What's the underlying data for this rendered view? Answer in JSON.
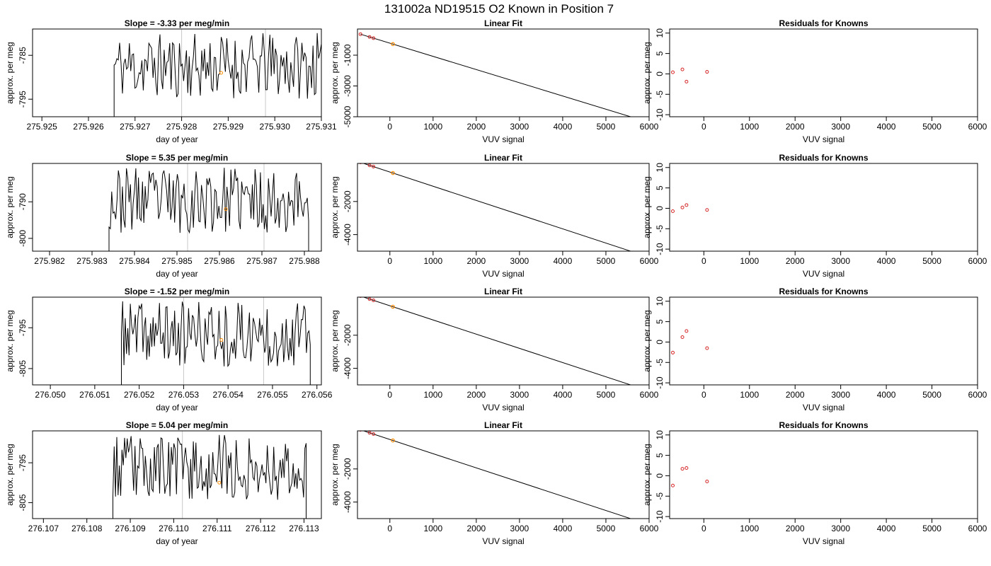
{
  "title": "131002a     ND19515   O2 Known in Position  7",
  "colors": {
    "trace": "#000000",
    "known_point": "#d62728",
    "sample_point": "#ff8c00",
    "marker_line": "#c8c8c8",
    "fit_line": "#000000"
  },
  "chart_data": [
    {
      "row": 1,
      "panels": [
        {
          "type": "line",
          "title": "Slope =  -3.33  per meg/min",
          "xlabel": "day of year",
          "ylabel": "approx. per meg",
          "xlim": [
            275.9248,
            275.931
          ],
          "ylim": [
            -799,
            -779
          ],
          "xticks": [
            275.925,
            275.926,
            275.927,
            275.928,
            275.929,
            275.93,
            275.931
          ],
          "xtick_labels": [
            "275.925",
            "275.926",
            "275.927",
            "275.928",
            "275.929",
            "275.930",
            "275.931"
          ],
          "yticks": [
            -785,
            -795
          ],
          "ytick_labels": [
            "-785",
            "-795"
          ],
          "x_start": 275.92655,
          "x_end": 275.931,
          "n_points": 150,
          "seed": 11,
          "vlines": [
            275.928,
            275.9298
          ],
          "marker": {
            "x": 275.92885,
            "y": -789
          }
        },
        {
          "type": "scatter+line",
          "title": "Linear Fit",
          "xlabel": "VUV signal",
          "ylabel": "approx. per meg",
          "xlim": [
            -750,
            6000
          ],
          "ylim": [
            -5000,
            700
          ],
          "xticks": [
            0,
            1000,
            2000,
            3000,
            4000,
            5000,
            6000
          ],
          "yticks": [
            -1000,
            -3000,
            -5000
          ],
          "ytick_labels": [
            "-1000",
            "-3000",
            "-5000"
          ],
          "known_x": [
            -680,
            -470,
            -380
          ],
          "sample_x": 70,
          "fit": {
            "slope": -0.858,
            "intercept": -220,
            "x_from": -680,
            "x_to": 5780
          }
        },
        {
          "type": "scatter",
          "title": "Residuals for Knowns",
          "xlabel": "VUV signal",
          "ylabel": "approx. per meg",
          "xlim": [
            -750,
            6000
          ],
          "ylim": [
            -10.5,
            11
          ],
          "xticks": [
            0,
            1000,
            2000,
            3000,
            4000,
            5000,
            6000
          ],
          "yticks": [
            -10,
            -5,
            0,
            5,
            10
          ],
          "points": [
            [
              -680,
              0.4
            ],
            [
              -470,
              1.1
            ],
            [
              -380,
              -1.9
            ],
            [
              70,
              0.5
            ]
          ]
        }
      ]
    },
    {
      "row": 2,
      "panels": [
        {
          "type": "line",
          "title": "Slope =  5.35  per meg/min",
          "xlabel": "day of year",
          "ylabel": "approx. per meg",
          "xlim": [
            275.9816,
            275.9884
          ],
          "ylim": [
            -803.5,
            -779.5
          ],
          "xticks": [
            275.982,
            275.983,
            275.984,
            275.985,
            275.986,
            275.987,
            275.988
          ],
          "xtick_labels": [
            "275.982",
            "275.983",
            "275.984",
            "275.985",
            "275.986",
            "275.987",
            "275.988"
          ],
          "yticks": [
            -790,
            -800
          ],
          "ytick_labels": [
            "-790",
            "-800"
          ],
          "x_start": 275.9834,
          "x_end": 275.9881,
          "n_points": 150,
          "seed": 23,
          "vlines": [
            275.98525,
            275.98705
          ],
          "marker": {
            "x": 275.98615,
            "y": -792
          }
        },
        {
          "type": "scatter+line",
          "title": "Linear Fit",
          "xlabel": "VUV signal",
          "ylabel": "approx. per meg",
          "xlim": [
            -750,
            6000
          ],
          "ylim": [
            -5000,
            300
          ],
          "xticks": [
            0,
            1000,
            2000,
            3000,
            4000,
            5000,
            6000
          ],
          "yticks": [
            -2000,
            -4000
          ],
          "ytick_labels": [
            "-2000",
            "-4000"
          ],
          "known_x": [
            -680,
            -470,
            -380
          ],
          "sample_x": 70,
          "fit": {
            "slope": -0.858,
            "intercept": -220,
            "x_from": -680,
            "x_to": 5780
          }
        },
        {
          "type": "scatter",
          "title": "Residuals for Knowns",
          "xlabel": "VUV signal",
          "ylabel": "approx. per meg",
          "xlim": [
            -750,
            6000
          ],
          "ylim": [
            -10.5,
            11
          ],
          "xticks": [
            0,
            1000,
            2000,
            3000,
            4000,
            5000,
            6000
          ],
          "yticks": [
            -10,
            -5,
            0,
            5,
            10
          ],
          "points": [
            [
              -680,
              -0.7
            ],
            [
              -470,
              0.2
            ],
            [
              -380,
              0.8
            ],
            [
              70,
              -0.4
            ]
          ]
        }
      ]
    },
    {
      "row": 3,
      "panels": [
        {
          "type": "line",
          "title": "Slope =  -1.52  per meg/min",
          "xlabel": "day of year",
          "ylabel": "approx. per meg",
          "xlim": [
            276.0496,
            276.0561
          ],
          "ylim": [
            -809,
            -787.5
          ],
          "xticks": [
            276.05,
            276.051,
            276.052,
            276.053,
            276.054,
            276.055,
            276.056
          ],
          "xtick_labels": [
            "276.050",
            "276.051",
            "276.052",
            "276.053",
            "276.054",
            "276.055",
            "276.056"
          ],
          "yticks": [
            -795,
            -805
          ],
          "ytick_labels": [
            "-795",
            "-805"
          ],
          "x_start": 276.0516,
          "x_end": 276.05585,
          "n_points": 150,
          "seed": 37,
          "vlines": [
            276.053,
            276.0548
          ],
          "marker": {
            "x": 276.05385,
            "y": -798
          }
        },
        {
          "type": "scatter+line",
          "title": "Linear Fit",
          "xlabel": "VUV signal",
          "ylabel": "approx. per meg",
          "xlim": [
            -750,
            6000
          ],
          "ylim": [
            -5000,
            300
          ],
          "xticks": [
            0,
            1000,
            2000,
            3000,
            4000,
            5000,
            6000
          ],
          "yticks": [
            -2000,
            -4000
          ],
          "ytick_labels": [
            "-2000",
            "-4000"
          ],
          "known_x": [
            -680,
            -470,
            -380
          ],
          "sample_x": 70,
          "fit": {
            "slope": -0.858,
            "intercept": -220,
            "x_from": -680,
            "x_to": 5780
          }
        },
        {
          "type": "scatter",
          "title": "Residuals for Knowns",
          "xlabel": "VUV signal",
          "ylabel": "approx. per meg",
          "xlim": [
            -750,
            6000
          ],
          "ylim": [
            -10.5,
            11
          ],
          "xticks": [
            0,
            1000,
            2000,
            3000,
            4000,
            5000,
            6000
          ],
          "yticks": [
            -10,
            -5,
            0,
            5,
            10
          ],
          "points": [
            [
              -680,
              -2.6
            ],
            [
              -470,
              1.2
            ],
            [
              -380,
              2.7
            ],
            [
              70,
              -1.5
            ]
          ]
        }
      ]
    },
    {
      "row": 4,
      "panels": [
        {
          "type": "line",
          "title": "Slope =  5.04  per meg/min",
          "xlabel": "day of year",
          "ylabel": "approx. per meg",
          "xlim": [
            276.10675,
            276.1134
          ],
          "ylim": [
            -809,
            -787
          ],
          "xticks": [
            276.107,
            276.108,
            276.109,
            276.11,
            276.111,
            276.112,
            276.113
          ],
          "xtick_labels": [
            "276.107",
            "276.108",
            "276.109",
            "276.110",
            "276.111",
            "276.112",
            "276.113"
          ],
          "yticks": [
            -795,
            -805
          ],
          "ytick_labels": [
            "-795",
            "-805"
          ],
          "x_start": 276.1086,
          "x_end": 276.11305,
          "n_points": 150,
          "seed": 53,
          "vlines": [
            276.1102
          ],
          "marker": {
            "x": 276.11105,
            "y": -800
          }
        },
        {
          "type": "scatter+line",
          "title": "Linear Fit",
          "xlabel": "VUV signal",
          "ylabel": "approx. per meg",
          "xlim": [
            -750,
            6000
          ],
          "ylim": [
            -5000,
            300
          ],
          "xticks": [
            0,
            1000,
            2000,
            3000,
            4000,
            5000,
            6000
          ],
          "yticks": [
            -2000,
            -4000
          ],
          "ytick_labels": [
            "-2000",
            "-4000"
          ],
          "known_x": [
            -680,
            -470,
            -380
          ],
          "sample_x": 70,
          "fit": {
            "slope": -0.858,
            "intercept": -220,
            "x_from": -680,
            "x_to": 5780
          }
        },
        {
          "type": "scatter",
          "title": "Residuals for Knowns",
          "xlabel": "VUV signal",
          "ylabel": "approx. per meg",
          "xlim": [
            -750,
            6000
          ],
          "ylim": [
            -10.5,
            11
          ],
          "xticks": [
            0,
            1000,
            2000,
            3000,
            4000,
            5000,
            6000
          ],
          "yticks": [
            -10,
            -5,
            0,
            5,
            10
          ],
          "points": [
            [
              -680,
              -2.4
            ],
            [
              -470,
              1.7
            ],
            [
              -380,
              1.9
            ],
            [
              70,
              -1.4
            ]
          ]
        }
      ]
    }
  ]
}
